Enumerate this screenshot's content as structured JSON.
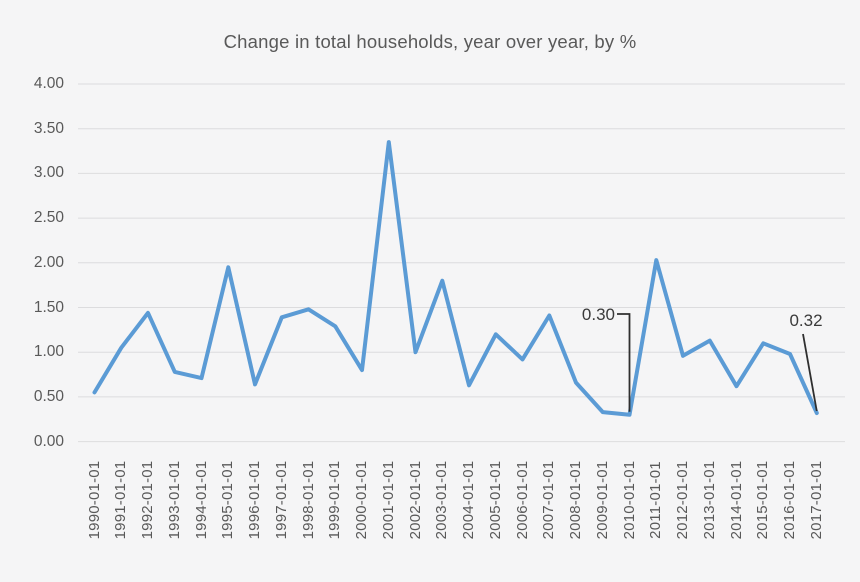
{
  "chart_data": {
    "type": "line",
    "title": "Change in total households, year over year, by %",
    "x": [
      "1990-01-01",
      "1991-01-01",
      "1992-01-01",
      "1993-01-01",
      "1994-01-01",
      "1995-01-01",
      "1996-01-01",
      "1997-01-01",
      "1998-01-01",
      "1999-01-01",
      "2000-01-01",
      "2001-01-01",
      "2002-01-01",
      "2003-01-01",
      "2004-01-01",
      "2005-01-01",
      "2006-01-01",
      "2007-01-01",
      "2008-01-01",
      "2009-01-01",
      "2010-01-01",
      "2011-01-01",
      "2012-01-01",
      "2013-01-01",
      "2014-01-01",
      "2015-01-01",
      "2016-01-01",
      "2017-01-01"
    ],
    "values": [
      0.55,
      1.05,
      1.44,
      0.78,
      0.71,
      1.95,
      0.64,
      1.39,
      1.48,
      1.29,
      0.8,
      3.35,
      1.0,
      1.8,
      0.63,
      1.2,
      0.92,
      1.41,
      0.66,
      0.33,
      0.3,
      2.03,
      0.96,
      1.13,
      0.62,
      1.1,
      0.98,
      0.32
    ],
    "xlabel": "",
    "ylabel": "",
    "ylim": [
      0,
      4
    ],
    "ytick_step": 0.5,
    "yticks": [
      "4.00",
      "3.50",
      "3.00",
      "2.50",
      "2.00",
      "1.50",
      "1.00",
      "0.50",
      "0.00"
    ],
    "grid": "horizontal",
    "legend": "none",
    "annotations": [
      {
        "label": "0.30",
        "x": "2010-01-01",
        "value": 0.3
      },
      {
        "label": "0.32",
        "x": "2017-01-01",
        "value": 0.32
      }
    ]
  },
  "colors": {
    "line": "#5b9bd5",
    "gridline": "#dcdcde",
    "axis_text": "#595959",
    "annotation_text": "#3a3a3a",
    "leader_line": "#2f2f2f",
    "background": "#f5f5f6"
  }
}
